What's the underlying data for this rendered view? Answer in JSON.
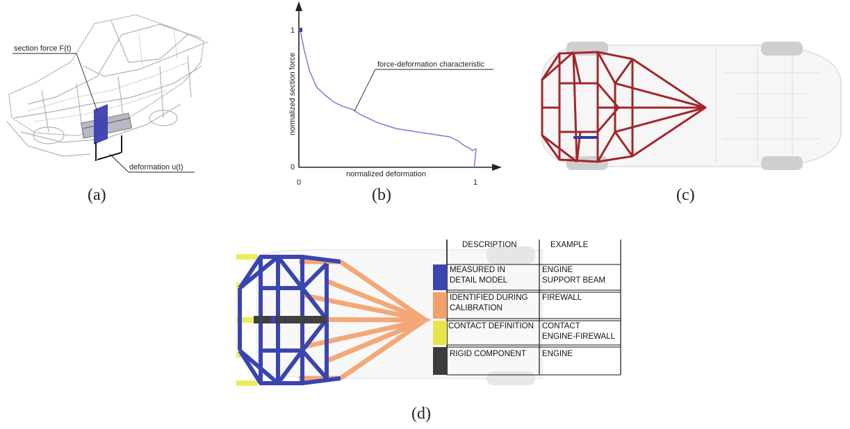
{
  "panel_a": {
    "caption": "(a)",
    "label_force": "section force F(t)",
    "label_deformation": "deformation u(t)",
    "colors": {
      "section_plane": "#3b3fb0",
      "frame": "#9a9a9a"
    }
  },
  "panel_b": {
    "caption": "(b)",
    "chart_data": {
      "type": "line",
      "title": "",
      "xlabel": "normalized deformation",
      "ylabel": "normalized section force",
      "xlim": [
        0,
        1.1
      ],
      "ylim": [
        0,
        1.1
      ],
      "x_ticks": [
        "0",
        "1"
      ],
      "y_ticks": [
        "0",
        "1"
      ],
      "annotation": "force-deformation characteristic",
      "series": [
        {
          "color": "#8a7fd6",
          "x": [
            0.0,
            0.01,
            0.03,
            0.06,
            0.1,
            0.15,
            0.2,
            0.25,
            0.3,
            0.35,
            0.4,
            0.45,
            0.5,
            0.55,
            0.6,
            0.65,
            0.7,
            0.75,
            0.8,
            0.85,
            0.9,
            0.93,
            0.96,
            0.98,
            0.99,
            1.0,
            0.99
          ],
          "y": [
            1.0,
            0.98,
            0.85,
            0.7,
            0.58,
            0.52,
            0.47,
            0.44,
            0.42,
            0.38,
            0.35,
            0.32,
            0.3,
            0.28,
            0.27,
            0.26,
            0.25,
            0.24,
            0.23,
            0.22,
            0.19,
            0.16,
            0.14,
            0.12,
            0.13,
            0.13,
            0.0
          ]
        }
      ]
    }
  },
  "panel_c": {
    "caption": "(c)",
    "colors": {
      "frame": "#a3262a",
      "beam": "#2e3aa8",
      "body": "#c8c8c8"
    }
  },
  "panel_d": {
    "caption": "(d)",
    "table": {
      "headers": [
        "DESCRIPTION",
        "EXAMPLE"
      ],
      "rows": [
        {
          "color": "#3a45b0",
          "description": [
            "MEASURED IN",
            "DETAIL MODEL"
          ],
          "example": [
            "ENGINE",
            "SUPPORT BEAM"
          ]
        },
        {
          "color": "#f4a06a",
          "description": [
            "IDENTIFIED DURING",
            "CALIBRATION"
          ],
          "example": [
            "FIREWALL"
          ]
        },
        {
          "color": "#e6e64a",
          "description": [
            "CONTACT DEFINITION"
          ],
          "example": [
            "CONTACT",
            "ENGINE-FIREWALL"
          ]
        },
        {
          "color": "#3c3c3c",
          "description": [
            "RIGID COMPONENT"
          ],
          "example": [
            "ENGINE"
          ]
        }
      ]
    },
    "colors": {
      "blue": "#3a45b0",
      "orange": "#f4a06a",
      "yellow": "#ecec5a",
      "dark": "#404040"
    }
  }
}
